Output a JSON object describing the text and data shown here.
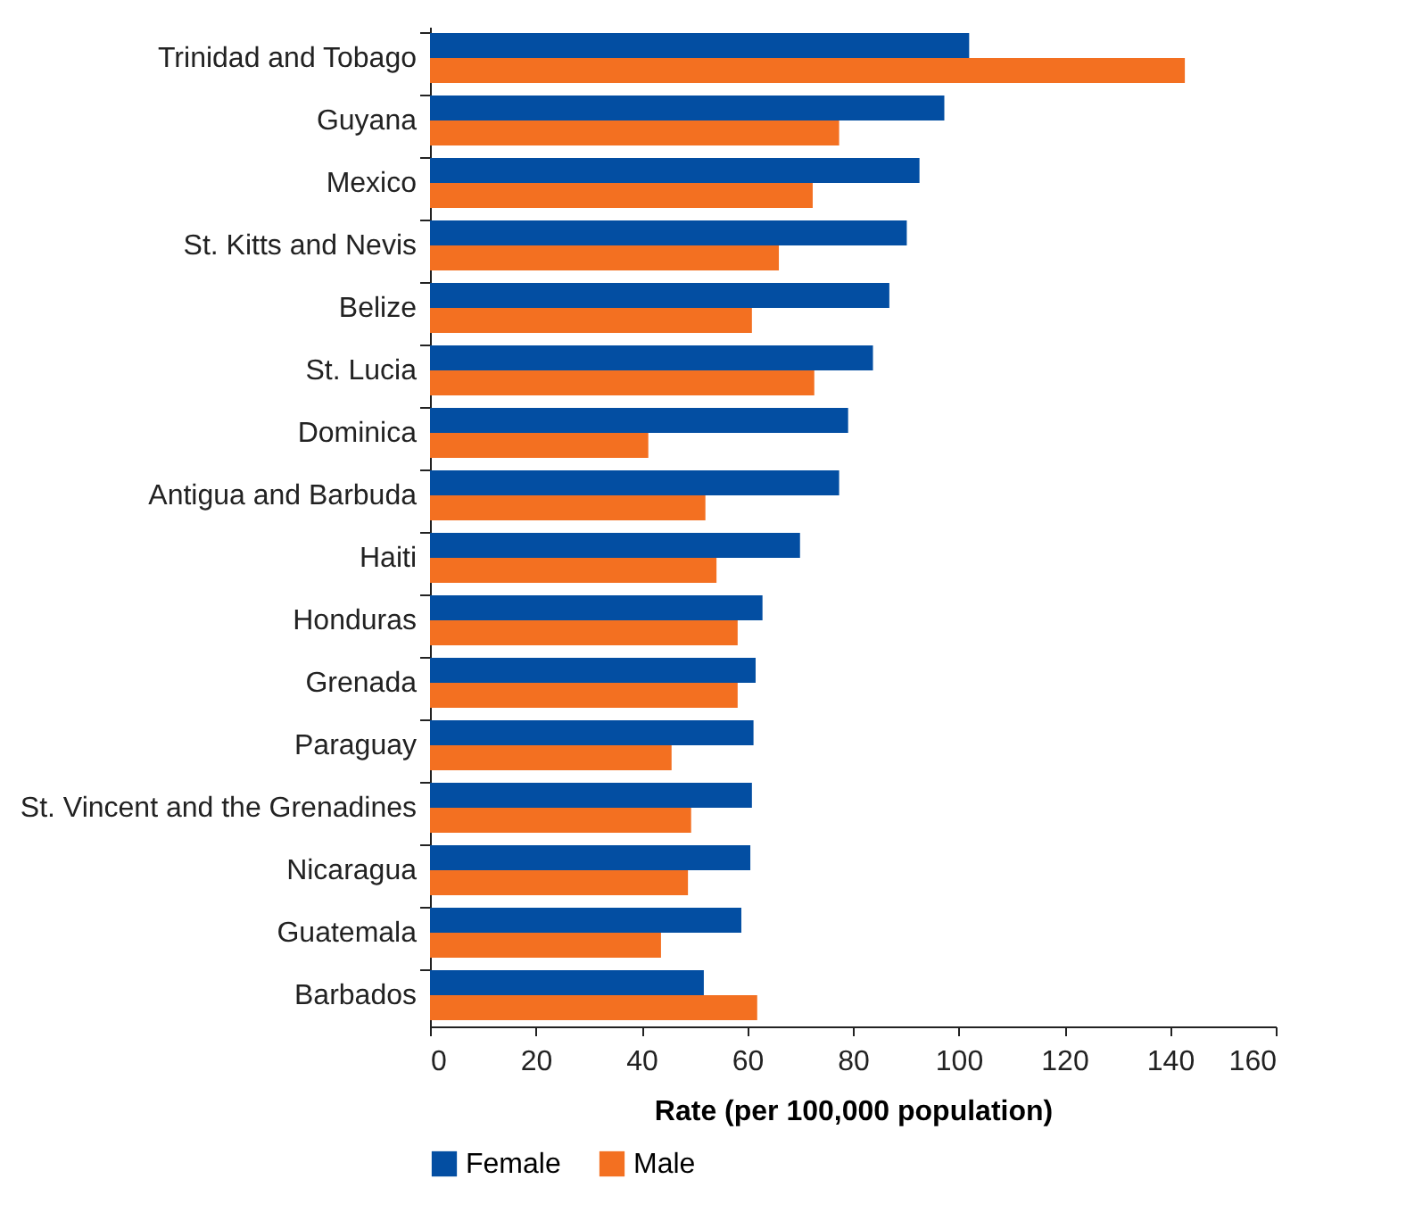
{
  "chart_data": {
    "type": "bar",
    "orientation": "horizontal",
    "xlabel": "Rate (per 100,000 population)",
    "categories": [
      "Trinidad and Tobago",
      "Guyana",
      "Mexico",
      "St. Kitts and Nevis",
      "Belize",
      "St. Lucia",
      "Dominica",
      "Antigua and Barbuda",
      "Haiti",
      "Honduras",
      "Grenada",
      "Paraguay",
      "St. Vincent and the Grenadines",
      "Nicaragua",
      "Guatemala",
      "Barbados"
    ],
    "series": [
      {
        "name": "Female",
        "color": "#034ea2",
        "values": [
          102.0,
          97.3,
          92.6,
          90.2,
          86.9,
          83.8,
          79.1,
          77.4,
          70.0,
          62.9,
          61.6,
          61.2,
          60.9,
          60.6,
          58.9,
          51.8
        ]
      },
      {
        "name": "Male",
        "color": "#f37021",
        "values": [
          142.8,
          77.4,
          72.4,
          66.0,
          60.9,
          72.7,
          41.3,
          52.1,
          54.2,
          58.2,
          58.2,
          45.7,
          49.4,
          48.8,
          43.7,
          61.9
        ]
      }
    ],
    "xlim": [
      0,
      160
    ],
    "xticks": [
      0,
      20,
      40,
      60,
      80,
      100,
      120,
      140,
      160
    ],
    "grid": false,
    "legend": "bottom"
  }
}
